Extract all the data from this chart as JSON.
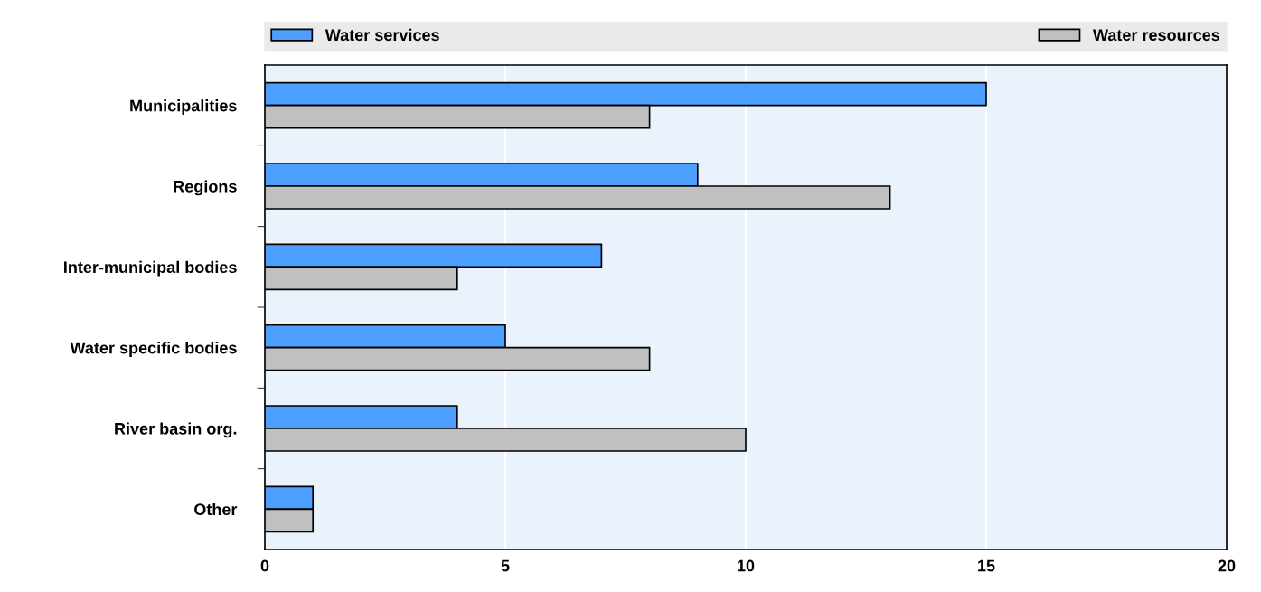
{
  "chart_data": {
    "type": "bar",
    "orientation": "horizontal",
    "categories": [
      "Municipalities",
      "Regions",
      "Inter-municipal bodies",
      "Water specific bodies",
      "River basin org.",
      "Other"
    ],
    "series": [
      {
        "name": "Water services",
        "color": "#4d9fff",
        "values": [
          15,
          9,
          7,
          5,
          4,
          1
        ]
      },
      {
        "name": "Water resources",
        "color": "#c0c0c0",
        "values": [
          8,
          13,
          4,
          8,
          10,
          1
        ]
      }
    ],
    "xlim": [
      0,
      20
    ],
    "xticks": [
      0,
      5,
      10,
      15,
      20
    ],
    "grid": "x",
    "legend": "top"
  }
}
